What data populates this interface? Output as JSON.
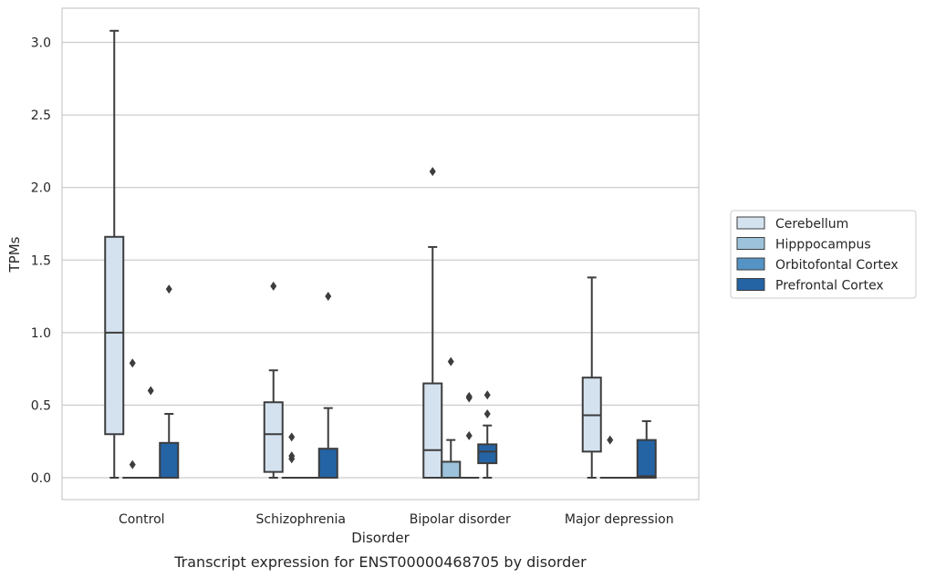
{
  "chart_data": {
    "type": "box",
    "caption": "Transcript expression for ENST00000468705 by disorder",
    "xlabel": "Disorder",
    "ylabel": "TPMs",
    "ylim": [
      -0.15,
      3.25
    ],
    "yticks": [
      0.0,
      0.5,
      1.0,
      1.5,
      2.0,
      2.5,
      3.0
    ],
    "ytick_labels": [
      "0.0",
      "0.5",
      "1.0",
      "1.5",
      "2.0",
      "2.5",
      "3.0"
    ],
    "grid": "horizontal",
    "legend_position": "right",
    "categories": [
      "Control",
      "Schizophrenia",
      "Bipolar disorder",
      "Major depression"
    ],
    "series": [
      {
        "name": "Cerebellum",
        "color": "#d4e2f0",
        "boxes": [
          {
            "q1": 0.3,
            "median": 1.0,
            "q3": 1.66,
            "whisker_low": 0.0,
            "whisker_high": 3.08,
            "outliers": []
          },
          {
            "q1": 0.04,
            "median": 0.3,
            "q3": 0.52,
            "whisker_low": 0.0,
            "whisker_high": 0.74,
            "outliers": [
              1.32
            ]
          },
          {
            "q1": 0.0,
            "median": 0.19,
            "q3": 0.65,
            "whisker_low": 0.0,
            "whisker_high": 1.59,
            "outliers": [
              2.11
            ]
          },
          {
            "q1": 0.18,
            "median": 0.43,
            "q3": 0.69,
            "whisker_low": 0.0,
            "whisker_high": 1.38,
            "outliers": []
          }
        ]
      },
      {
        "name": "Hipppocampus",
        "color": "#9cc3db",
        "boxes": [
          {
            "q1": 0.0,
            "median": 0.0,
            "q3": 0.0,
            "whisker_low": 0.0,
            "whisker_high": 0.0,
            "outliers": [
              0.79,
              0.09
            ]
          },
          {
            "q1": 0.0,
            "median": 0.0,
            "q3": 0.0,
            "whisker_low": 0.0,
            "whisker_high": 0.0,
            "outliers": [
              0.28,
              0.15,
              0.13
            ]
          },
          {
            "q1": 0.0,
            "median": 0.0,
            "q3": 0.11,
            "whisker_low": 0.0,
            "whisker_high": 0.26,
            "outliers": [
              0.8
            ]
          },
          {
            "q1": 0.0,
            "median": 0.0,
            "q3": 0.0,
            "whisker_low": 0.0,
            "whisker_high": 0.0,
            "outliers": [
              0.26
            ]
          }
        ]
      },
      {
        "name": "Orbitofontal Cortex",
        "color": "#5593c5",
        "boxes": [
          {
            "q1": 0.0,
            "median": 0.0,
            "q3": 0.0,
            "whisker_low": 0.0,
            "whisker_high": 0.0,
            "outliers": [
              0.6
            ]
          },
          {
            "q1": 0.0,
            "median": 0.0,
            "q3": 0.0,
            "whisker_low": 0.0,
            "whisker_high": 0.0,
            "outliers": []
          },
          {
            "q1": 0.0,
            "median": 0.0,
            "q3": 0.0,
            "whisker_low": 0.0,
            "whisker_high": 0.0,
            "outliers": [
              0.56,
              0.55,
              0.29
            ]
          },
          {
            "q1": 0.0,
            "median": 0.0,
            "q3": 0.0,
            "whisker_low": 0.0,
            "whisker_high": 0.0,
            "outliers": []
          }
        ]
      },
      {
        "name": "Prefrontal Cortex",
        "color": "#2463a4",
        "boxes": [
          {
            "q1": 0.0,
            "median": 0.0,
            "q3": 0.24,
            "whisker_low": 0.0,
            "whisker_high": 0.44,
            "outliers": [
              1.3
            ]
          },
          {
            "q1": 0.0,
            "median": 0.0,
            "q3": 0.2,
            "whisker_low": 0.0,
            "whisker_high": 0.48,
            "outliers": [
              1.25
            ]
          },
          {
            "q1": 0.1,
            "median": 0.18,
            "q3": 0.23,
            "whisker_low": 0.0,
            "whisker_high": 0.36,
            "outliers": [
              0.57,
              0.44
            ]
          },
          {
            "q1": 0.0,
            "median": 0.01,
            "q3": 0.26,
            "whisker_low": 0.0,
            "whisker_high": 0.39,
            "outliers": []
          }
        ]
      }
    ]
  }
}
